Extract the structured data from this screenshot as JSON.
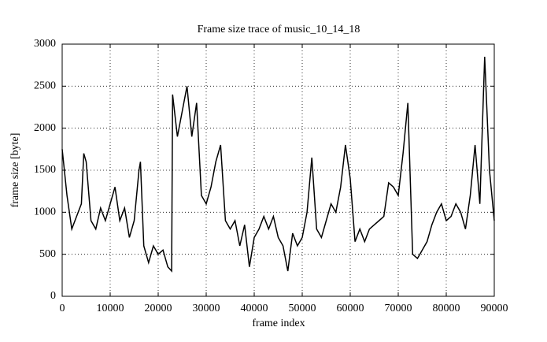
{
  "chart_data": {
    "type": "line",
    "title": "Frame size trace of music_10_14_18",
    "xlabel": "frame index",
    "ylabel": "frame size [byte]",
    "x": [
      0,
      1000,
      2000,
      3000,
      4000,
      4500,
      5000,
      6000,
      7000,
      8000,
      9000,
      10000,
      11000,
      12000,
      13000,
      14000,
      15000,
      16000,
      16300,
      17000,
      18000,
      19000,
      20000,
      21000,
      22000,
      22800,
      23000,
      24000,
      25000,
      26000,
      27000,
      28000,
      29000,
      30000,
      31000,
      32000,
      33000,
      34000,
      35000,
      36000,
      37000,
      38000,
      39000,
      40000,
      41000,
      42000,
      43000,
      44000,
      45000,
      46000,
      47000,
      48000,
      49000,
      50000,
      51000,
      52000,
      53000,
      54000,
      55000,
      56000,
      57000,
      58000,
      59000,
      60000,
      61000,
      62000,
      63000,
      64000,
      65000,
      66000,
      67000,
      68000,
      69000,
      70000,
      71000,
      72000,
      73000,
      74000,
      75000,
      76000,
      77000,
      78000,
      79000,
      80000,
      81000,
      82000,
      83000,
      84000,
      85000,
      86000,
      87000,
      88000,
      89000,
      90000
    ],
    "series": [
      {
        "name": "frame size",
        "color": "#000000",
        "values": [
          1750,
          1200,
          800,
          950,
          1100,
          1700,
          1600,
          900,
          800,
          1050,
          900,
          1100,
          1300,
          900,
          1050,
          700,
          900,
          1500,
          1600,
          600,
          400,
          600,
          500,
          550,
          350,
          300,
          2400,
          1900,
          2200,
          2500,
          1900,
          2300,
          1200,
          1100,
          1300,
          1600,
          1800,
          900,
          800,
          900,
          600,
          850,
          350,
          700,
          800,
          950,
          800,
          950,
          700,
          600,
          300,
          750,
          600,
          700,
          1000,
          1650,
          800,
          700,
          900,
          1100,
          1000,
          1300,
          1800,
          1400,
          650,
          800,
          650,
          800,
          850,
          900,
          950,
          1350,
          1300,
          1200,
          1700,
          2300,
          500,
          450,
          550,
          650,
          850,
          1000,
          1100,
          900,
          950,
          1100,
          1000,
          800,
          1200,
          1800,
          1100,
          2850,
          1500,
          900
        ]
      }
    ],
    "xlim": [
      0,
      90000
    ],
    "xticks": [
      0,
      10000,
      20000,
      30000,
      40000,
      50000,
      60000,
      70000,
      80000,
      90000
    ],
    "ylim": [
      0,
      3000
    ],
    "yticks": [
      0,
      500,
      1000,
      1500,
      2000,
      2500,
      3000
    ],
    "grid": true
  }
}
